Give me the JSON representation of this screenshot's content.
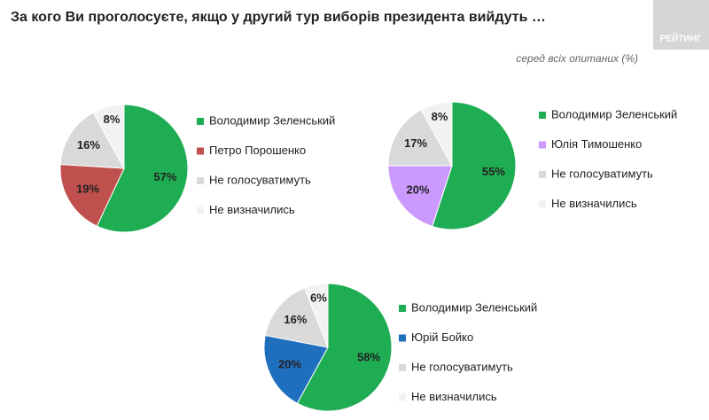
{
  "title": "За кого Ви проголосуєте, якщо у другий тур виборів президента вийдуть …",
  "subtitle": "серед всіх опитаних (%)",
  "brand": "РЕЙТИНГ",
  "chart_data": [
    {
      "type": "pie",
      "categories": [
        "Володимир Зеленський",
        "Петро Порошенко",
        "Не голосуватимуть",
        "Не визначились"
      ],
      "values": [
        57,
        19,
        16,
        8
      ],
      "value_labels": [
        "57%",
        "19%",
        "16%",
        "8%"
      ],
      "colors": [
        "#1fad54",
        "#c0504d",
        "#d9d9d9",
        "#f2f2f2"
      ]
    },
    {
      "type": "pie",
      "categories": [
        "Володимир Зеленський",
        "Юлія Тимошенко",
        "Не голосуватимуть",
        "Не визначились"
      ],
      "values": [
        55,
        20,
        17,
        8
      ],
      "value_labels": [
        "55%",
        "20%",
        "17%",
        "8%"
      ],
      "colors": [
        "#1fad54",
        "#cc99ff",
        "#d9d9d9",
        "#f2f2f2"
      ]
    },
    {
      "type": "pie",
      "categories": [
        "Володимир Зеленський",
        "Юрій Бойко",
        "Не голосуватимуть",
        "Не визначились"
      ],
      "values": [
        58,
        20,
        16,
        6
      ],
      "value_labels": [
        "58%",
        "20%",
        "16%",
        "6%"
      ],
      "colors": [
        "#1fad54",
        "#1f6fbf",
        "#d9d9d9",
        "#f2f2f2"
      ]
    }
  ]
}
